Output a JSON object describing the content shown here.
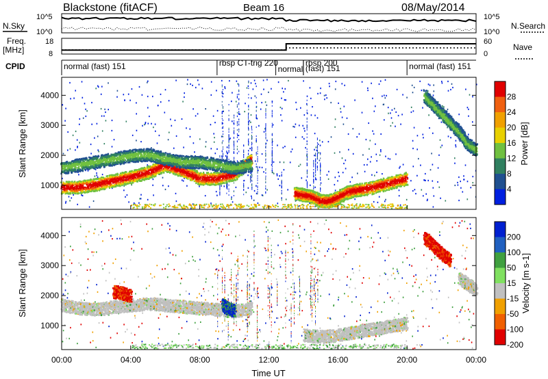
{
  "header": {
    "station": "Blackstone (fitACF)",
    "beam": "Beam 16",
    "date": "08/May/2014"
  },
  "top_panels": {
    "nsky_label": "N.Sky",
    "nsearch_label": "N.Search",
    "freq_label_line1": "Freq.",
    "freq_label_line2": "[MHz]",
    "nave_label": "Nave",
    "cpid_label": "CPID",
    "noise_left_ticks": [
      "10^5",
      "10^0"
    ],
    "noise_right_ticks": [
      "10^5",
      "10^0"
    ],
    "freq_left_ticks": [
      "18",
      "8"
    ],
    "nave_right_ticks": [
      "60",
      "0"
    ]
  },
  "cpid_segments": [
    {
      "label": "normal (fast) 151",
      "start_h": 0,
      "end_h": 9.0
    },
    {
      "label": "rbsp CT-trig 220",
      "start_h": 9.0,
      "end_h": 12.4
    },
    {
      "label": "normal",
      "start_h": 12.4,
      "end_h": 14.0
    },
    {
      "label": "rbsp 200",
      "start_h": 14.0,
      "end_h": 16.2
    },
    {
      "label": "(fast) 151",
      "start_h": 14.0,
      "end_h": 20.0
    },
    {
      "label": "normal (fast) 151",
      "start_h": 20.0,
      "end_h": 24.0
    }
  ],
  "freq_series": {
    "x_h": [
      0,
      13.0,
      13.0,
      24
    ],
    "y_mhz": [
      10.5,
      10.5,
      14.5,
      14.5
    ]
  },
  "chart_data": [
    {
      "type": "heatmap",
      "name": "Power",
      "colorbar_label": "Power [dB]",
      "colorbar_ticks": [
        "28",
        "24",
        "20",
        "16",
        "12",
        "8",
        "4"
      ],
      "ylabel": "Slant Range [km]",
      "y_ticks": [
        "4000",
        "3000",
        "2000",
        "1000"
      ],
      "xlim": [
        0,
        24
      ],
      "ylim": [
        200,
        4600
      ],
      "bands": [
        {
          "x": [
            0,
            1,
            2,
            3,
            4,
            5,
            6,
            7,
            8,
            9,
            10,
            11
          ],
          "y": [
            950,
            960,
            1050,
            1180,
            1300,
            1450,
            1700,
            1500,
            1250,
            1250,
            1400,
            1900
          ],
          "level": "high"
        },
        {
          "x": [
            0,
            1,
            2,
            3,
            4,
            5,
            6,
            7,
            8,
            9,
            10,
            11
          ],
          "y": [
            1600,
            1700,
            1800,
            1900,
            2000,
            2050,
            1900,
            1800,
            1800,
            1700,
            1600,
            1700
          ],
          "level": "mid"
        },
        {
          "x": [
            13.5,
            14,
            14.5,
            15,
            15.5,
            16,
            16.5,
            17,
            18,
            19,
            20
          ],
          "y": [
            750,
            700,
            650,
            500,
            500,
            620,
            780,
            850,
            950,
            1100,
            1250
          ],
          "level": "high"
        },
        {
          "x": [
            21,
            21.5,
            22,
            22.5,
            23,
            23.5,
            24
          ],
          "y": [
            4000,
            3700,
            3400,
            3100,
            2800,
            2400,
            2200
          ],
          "level": "mid"
        }
      ]
    },
    {
      "type": "heatmap",
      "name": "Velocity",
      "colorbar_label": "Velocity [m s-1]",
      "colorbar_ticks": [
        "200",
        "100",
        "50",
        "15",
        "-15",
        "-50",
        "-100",
        "-200"
      ],
      "ylabel": "Slant Range [km]",
      "y_ticks": [
        "4000",
        "3000",
        "2000",
        "1000"
      ],
      "xlim": [
        0,
        24
      ],
      "ylim": [
        200,
        4600
      ],
      "x_ticks": [
        "00:00",
        "04:00",
        "08:00",
        "12:00",
        "16:00",
        "20:00",
        "00:00"
      ],
      "xlabel": "Time UT",
      "bands": [
        {
          "x": [
            0,
            1,
            2,
            3,
            4,
            5,
            6,
            7,
            8,
            9,
            10,
            11
          ],
          "y": [
            1700,
            1600,
            1550,
            1650,
            1700,
            1750,
            1700,
            1650,
            1600,
            1550,
            1500,
            1600
          ],
          "level": "ground"
        },
        {
          "x": [
            14,
            15,
            16,
            17,
            18,
            19,
            20
          ],
          "y": [
            700,
            650,
            700,
            800,
            900,
            1000,
            1100
          ],
          "level": "ground"
        },
        {
          "x": [
            3,
            3.5,
            4
          ],
          "y": [
            2150,
            2100,
            2000
          ],
          "level": "neg"
        },
        {
          "x": [
            9.3,
            9.6,
            10
          ],
          "y": [
            1700,
            1600,
            1500
          ],
          "level": "pos"
        },
        {
          "x": [
            21,
            21.5,
            22,
            22.5
          ],
          "y": [
            3950,
            3700,
            3400,
            3200
          ],
          "level": "neg"
        },
        {
          "x": [
            23,
            23.5,
            24
          ],
          "y": [
            2600,
            2400,
            2200
          ],
          "level": "ground"
        }
      ]
    }
  ]
}
